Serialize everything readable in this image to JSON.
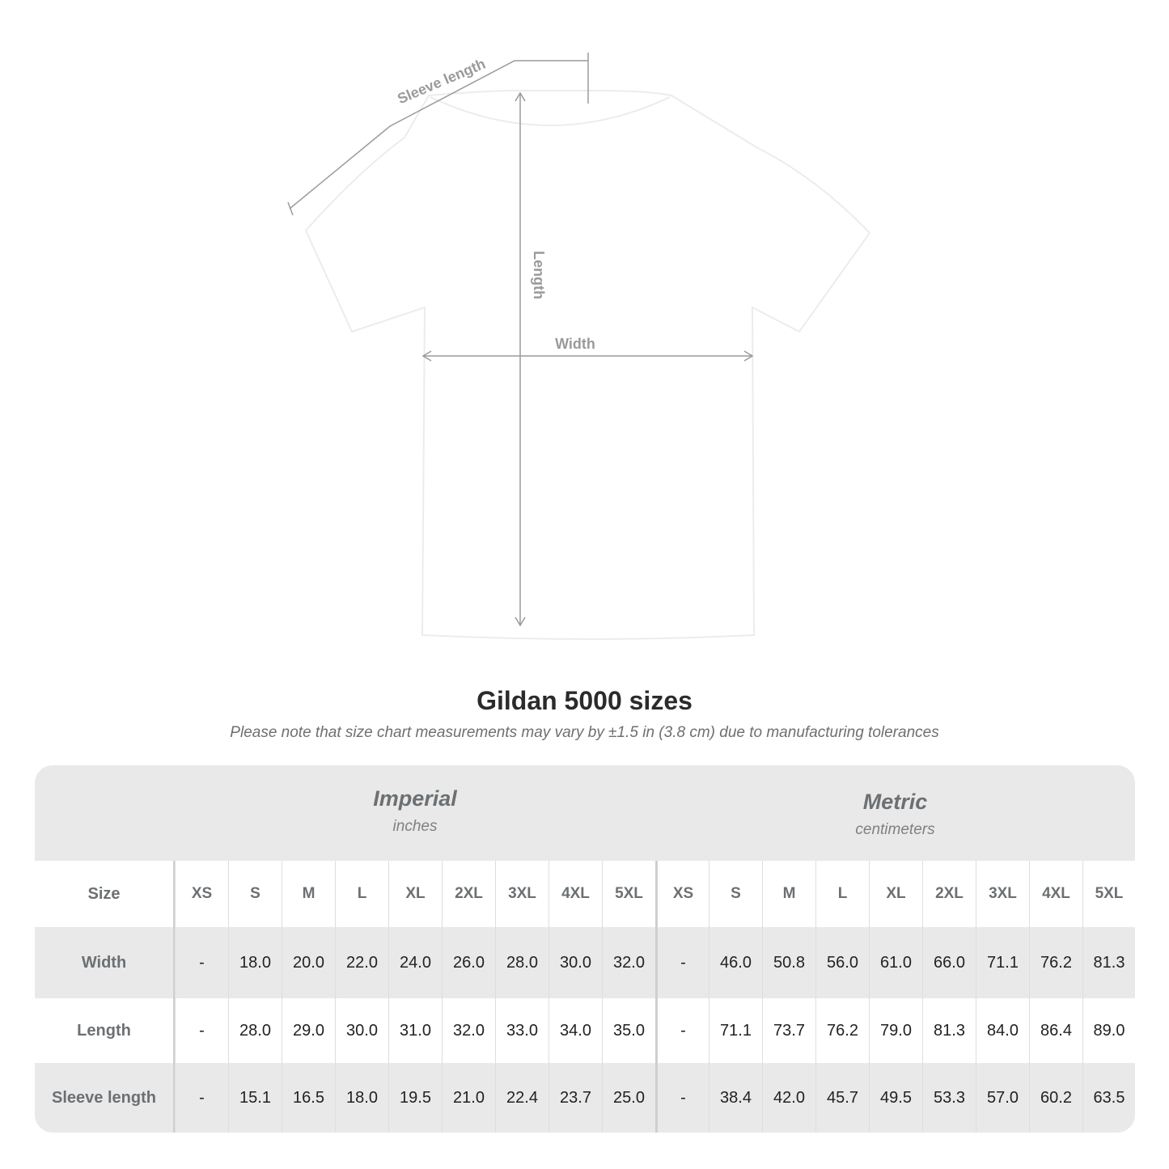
{
  "diagram": {
    "sleeve_label": "Sleeve length",
    "length_label": "Length",
    "width_label": "Width",
    "shirt_color": "#ffffff",
    "line_color": "#9a9a9a"
  },
  "title": "Gildan 5000 sizes",
  "note": "Please note that size chart measurements may vary by ±1.5 in (3.8 cm) due to manufacturing tolerances",
  "table": {
    "imperial": {
      "name": "Imperial",
      "unit": "inches"
    },
    "metric": {
      "name": "Metric",
      "unit": "centimeters"
    },
    "size_label": "Size",
    "sizes": [
      "XS",
      "S",
      "M",
      "L",
      "XL",
      "2XL",
      "3XL",
      "4XL",
      "5XL"
    ],
    "rows": [
      {
        "label": "Width",
        "imperial": [
          "-",
          "18.0",
          "20.0",
          "22.0",
          "24.0",
          "26.0",
          "28.0",
          "30.0",
          "32.0"
        ],
        "metric": [
          "-",
          "46.0",
          "50.8",
          "56.0",
          "61.0",
          "66.0",
          "71.1",
          "76.2",
          "81.3"
        ]
      },
      {
        "label": "Length",
        "imperial": [
          "-",
          "28.0",
          "29.0",
          "30.0",
          "31.0",
          "32.0",
          "33.0",
          "34.0",
          "35.0"
        ],
        "metric": [
          "-",
          "71.1",
          "73.7",
          "76.2",
          "79.0",
          "81.3",
          "84.0",
          "86.4",
          "89.0"
        ]
      },
      {
        "label": "Sleeve length",
        "imperial": [
          "-",
          "15.1",
          "16.5",
          "18.0",
          "19.5",
          "21.0",
          "22.4",
          "23.7",
          "25.0"
        ],
        "metric": [
          "-",
          "38.4",
          "42.0",
          "45.7",
          "49.5",
          "53.3",
          "57.0",
          "60.2",
          "63.5"
        ]
      }
    ]
  }
}
